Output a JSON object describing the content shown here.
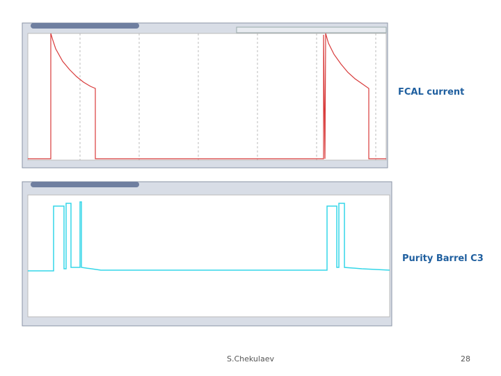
{
  "labels": {
    "top_chart": "FCAL  current",
    "bottom_chart": "Purity Barrel C3"
  },
  "footer": {
    "author": "S.Chekulaev",
    "page": "28"
  }
}
